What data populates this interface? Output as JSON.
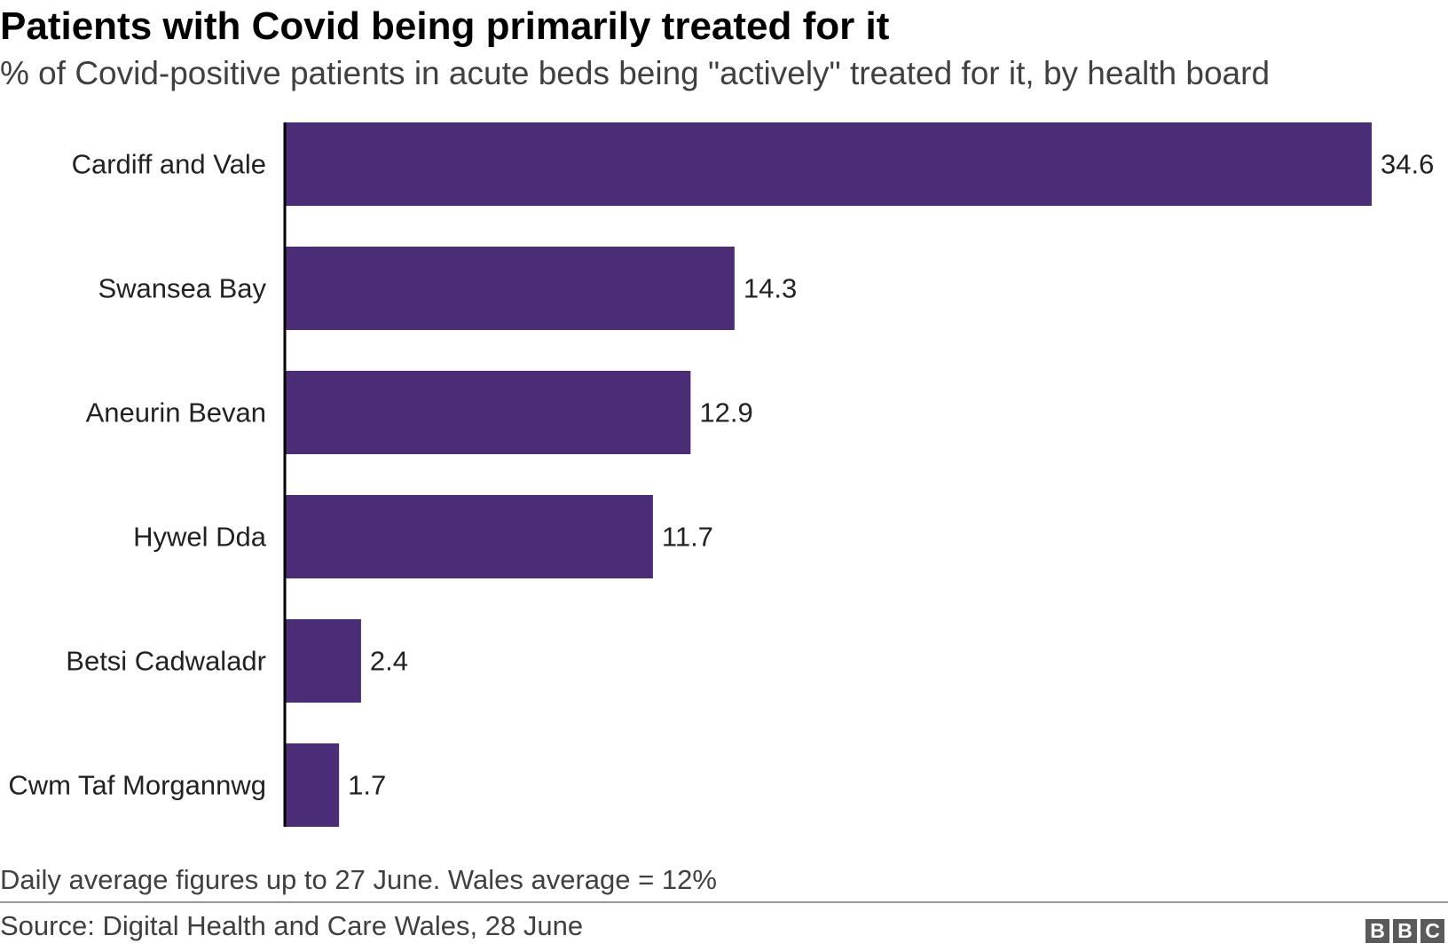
{
  "header": {
    "title": "Patients with Covid being primarily treated for it",
    "subtitle": "% of Covid-positive patients in acute beds being \"actively\" treated for it, by health board"
  },
  "footer": {
    "note": "Daily average figures up to 27 June. Wales average = 12%",
    "source": "Source: Digital Health and Care Wales, 28 June",
    "logo_letters": [
      "B",
      "B",
      "C"
    ]
  },
  "chart_data": {
    "type": "bar",
    "orientation": "horizontal",
    "title": "Patients with Covid being primarily treated for it",
    "subtitle": "% of Covid-positive patients in acute beds being \"actively\" treated for it, by health board",
    "categories": [
      "Cardiff and Vale",
      "Swansea Bay",
      "Aneurin Bevan",
      "Hywel Dda",
      "Betsi Cadwaladr",
      "Cwm Taf Morgannwg"
    ],
    "values": [
      34.6,
      14.3,
      12.9,
      11.7,
      2.4,
      1.7
    ],
    "value_labels": [
      "34.6",
      "14.3",
      "12.9",
      "11.7",
      "2.4",
      "1.7"
    ],
    "xlim": [
      0,
      34.6
    ],
    "grid": false,
    "bar_color": "#4b2c76",
    "axis_color": "#000000"
  }
}
